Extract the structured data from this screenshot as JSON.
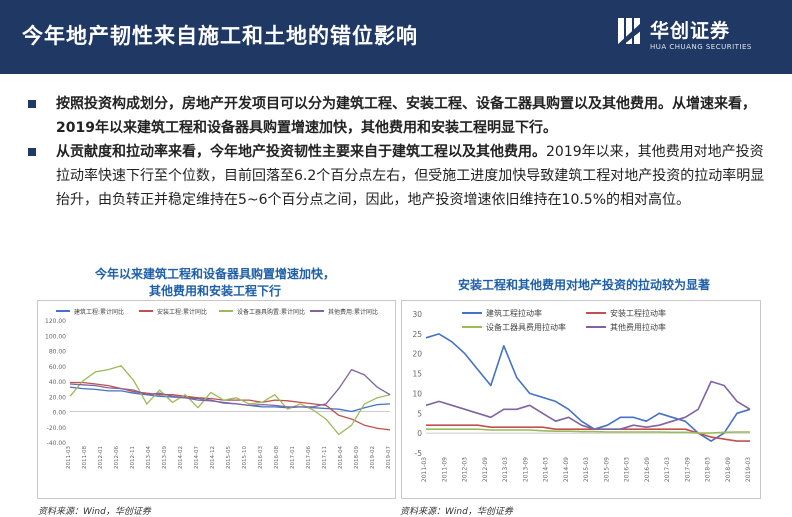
{
  "header": {
    "title": "今年地产韧性来自施工和土地的错位影响",
    "logo_name": "华创证券",
    "logo_sub": "HUA CHUANG SECURITIES"
  },
  "bullets": [
    {
      "bold": "按照投资构成划分，房地产开发项目可以分为建筑工程、安装工程、设备工器具购置以及其他费用。从增速来看，2019年以来建筑工程和设备器具购置增速加快，其他费用和安装工程明显下行。",
      "text": ""
    },
    {
      "bold": "从贡献度和拉动率来看，今年地产投资韧性主要来自于建筑工程以及其他费用。",
      "text": "2019年以来，其他费用对地产投资拉动率快速下行至个位数，目前回落至6.2个百分点左右，但受施工进度加快导致建筑工程对地产投资的拉动率明显抬升，由负转正并稳定维持在5~6个百分点之间，因此，地产投资增速依旧维持在10.5%的相对高位。"
    }
  ],
  "colors": {
    "header_bg": "#1f3864",
    "blue": "#4472c4",
    "red": "#c0504d",
    "green": "#9bbb59",
    "purple": "#8064a2"
  },
  "left_chart": {
    "title_line1": "今年以来建筑工程和设备器具购置增速加快，",
    "title_line2": "其他费用和安装工程下行",
    "source": "资料来源：Wind，华创证券"
  },
  "right_chart": {
    "title": "安装工程和其他费用对地产投资的拉动较为显著",
    "source": "资料来源：Wind，华创证券"
  },
  "chart_data": [
    {
      "type": "line",
      "title": "今年以来建筑工程和设备器具购置增速加快，其他费用和安装工程下行",
      "ylim": [
        -40,
        120
      ],
      "yticks": [
        "120.00",
        "100.00",
        "80.00",
        "60.00",
        "40.00",
        "20.00",
        "0.00",
        "-20.00",
        "-40.00"
      ],
      "x": [
        "2011-03",
        "2011-07",
        "2011-11",
        "2012-03",
        "2012-07",
        "2012-11",
        "2013-03",
        "2013-07",
        "2013-11",
        "2014-03",
        "2014-07",
        "2014-11",
        "2015-03",
        "2015-07",
        "2015-11",
        "2016-03",
        "2016-07",
        "2016-11",
        "2017-03",
        "2017-07",
        "2017-11",
        "2018-03",
        "2018-07",
        "2018-11",
        "2019-03",
        "2019-07"
      ],
      "xticks": [
        "2011-03",
        "2011-08",
        "2012-01",
        "2012-06",
        "2012-11",
        "2013-04",
        "2013-09",
        "2014-02",
        "2014-07",
        "2014-12",
        "2015-05",
        "2015-10",
        "2016-03",
        "2016-08",
        "2017-01",
        "2017-06",
        "2017-11",
        "2018-04",
        "2018-09",
        "2019-02",
        "2019-07"
      ],
      "legend_position": "top",
      "series": [
        {
          "name": "建筑工程:累计同比",
          "color": "blue",
          "values": [
            32,
            30,
            29,
            27,
            27,
            24,
            22,
            20,
            19,
            18,
            17,
            15,
            11,
            10,
            8,
            6,
            6,
            5,
            6,
            5,
            4,
            3,
            0,
            5,
            9,
            10
          ]
        },
        {
          "name": "安装工程:累计同比",
          "color": "red",
          "values": [
            38,
            38,
            36,
            34,
            30,
            26,
            24,
            22,
            22,
            20,
            18,
            17,
            15,
            15,
            15,
            12,
            15,
            14,
            12,
            10,
            8,
            -5,
            -10,
            -18,
            -22,
            -24
          ]
        },
        {
          "name": "设备工器具购置:累计同比",
          "color": "green",
          "values": [
            20,
            40,
            52,
            55,
            60,
            40,
            10,
            28,
            12,
            22,
            5,
            25,
            15,
            18,
            10,
            12,
            22,
            3,
            10,
            2,
            -10,
            -30,
            -18,
            10,
            18,
            22
          ]
        },
        {
          "name": "其他费用:累计同比",
          "color": "purple",
          "values": [
            36,
            35,
            34,
            31,
            30,
            28,
            22,
            24,
            20,
            18,
            15,
            14,
            12,
            10,
            8,
            9,
            8,
            6,
            6,
            6,
            10,
            30,
            55,
            48,
            32,
            22
          ]
        }
      ]
    },
    {
      "type": "line",
      "title": "安装工程和其他费用对地产投资的拉动较为显著",
      "ylim": [
        -5,
        30
      ],
      "yticks": [
        "30",
        "25",
        "20",
        "15",
        "10",
        "5",
        "0",
        "-5"
      ],
      "x": [
        "2011-03",
        "2011-07",
        "2011-11",
        "2012-03",
        "2012-07",
        "2012-11",
        "2013-03",
        "2013-07",
        "2013-11",
        "2014-03",
        "2014-07",
        "2014-11",
        "2015-03",
        "2015-07",
        "2015-11",
        "2016-03",
        "2016-07",
        "2016-11",
        "2017-03",
        "2017-07",
        "2017-11",
        "2018-03",
        "2018-07",
        "2018-11",
        "2019-03",
        "2019-07"
      ],
      "xticks": [
        "2011-03",
        "2011-09",
        "2012-03",
        "2012-09",
        "2013-03",
        "2013-09",
        "2014-03",
        "2014-09",
        "2015-03",
        "2015-09",
        "2016-03",
        "2016-09",
        "2017-03",
        "2017-09",
        "2018-03",
        "2018-09",
        "2019-03"
      ],
      "legend_position": "top",
      "series": [
        {
          "name": "建筑工程拉动率",
          "color": "blue",
          "values": [
            24,
            25,
            23,
            20,
            16,
            12,
            22,
            14,
            10,
            9,
            8,
            6,
            3,
            1,
            2,
            4,
            4,
            3,
            5,
            4,
            3,
            0,
            -2,
            0,
            5,
            6
          ]
        },
        {
          "name": "安装工程拉动率",
          "color": "red",
          "values": [
            2,
            2,
            2,
            2,
            2,
            1.5,
            1.5,
            1.5,
            1.5,
            1.5,
            1,
            1,
            1,
            1,
            1,
            1,
            1,
            1,
            1,
            1,
            1,
            0,
            -1,
            -1.5,
            -2,
            -2
          ]
        },
        {
          "name": "设备工器具费用拉动率",
          "color": "green",
          "values": [
            1,
            1,
            1,
            1,
            1,
            0.8,
            0.8,
            0.8,
            0.8,
            0.6,
            0.5,
            0.5,
            0.4,
            0.4,
            0.3,
            0.3,
            0.3,
            0.3,
            0.3,
            0.2,
            0.2,
            0,
            0,
            0.2,
            0.3,
            0.3
          ]
        },
        {
          "name": "其他费用拉动率",
          "color": "purple",
          "values": [
            7,
            8,
            7,
            6,
            5,
            4,
            6,
            6,
            7,
            5,
            3,
            4,
            2,
            1,
            1,
            1,
            2,
            1.5,
            2,
            3,
            4,
            6,
            13,
            12,
            8,
            6
          ]
        }
      ]
    }
  ]
}
